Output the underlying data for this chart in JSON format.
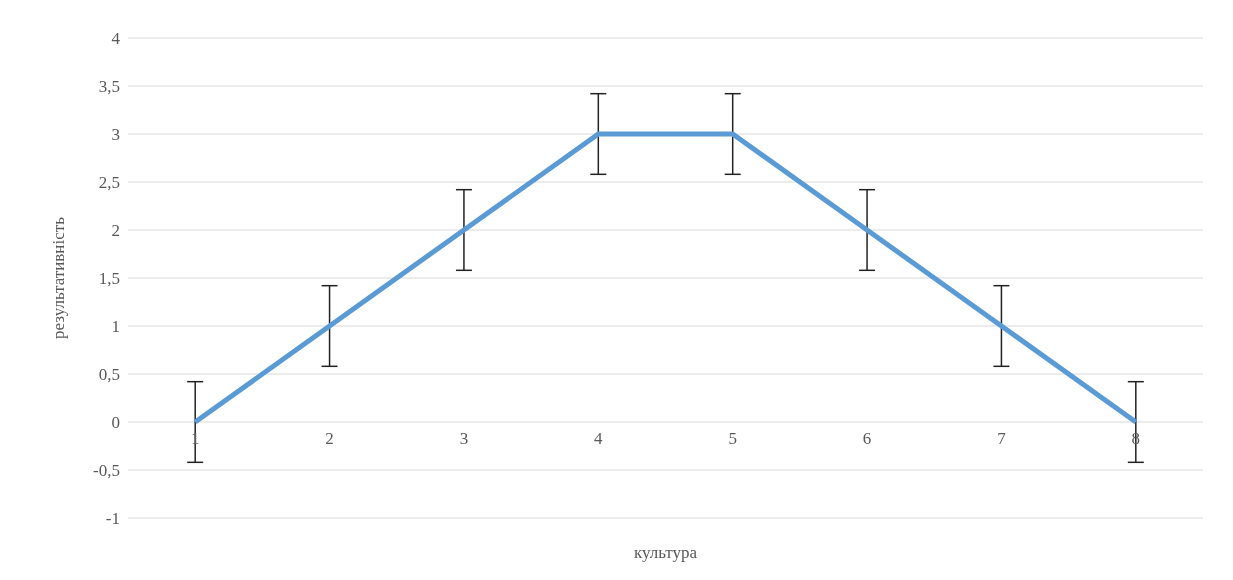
{
  "chart_data": {
    "type": "line",
    "xlabel": "культура",
    "ylabel": "результативність",
    "categories": [
      "1",
      "2",
      "3",
      "4",
      "5",
      "6",
      "7",
      "8"
    ],
    "series": [
      {
        "color": "#5b9bd5",
        "values": [
          0,
          1,
          2,
          3,
          3,
          2,
          1,
          0
        ],
        "errors": [
          0.42,
          0.42,
          0.42,
          0.42,
          0.42,
          0.42,
          0.42,
          0.42
        ]
      }
    ],
    "ylim": [
      -1,
      4
    ],
    "yticks": [
      -1,
      {
        "value": -0.5,
        "label": "-0,5"
      },
      0,
      {
        "value": 0.5,
        "label": "0,5"
      },
      1,
      {
        "value": 1.5,
        "label": "1,5"
      },
      2,
      {
        "value": 2.5,
        "label": "2,5"
      },
      3,
      {
        "value": 3.5,
        "label": "3,5"
      },
      4
    ],
    "grid": "y",
    "marker": "none",
    "line_style": "solid"
  }
}
